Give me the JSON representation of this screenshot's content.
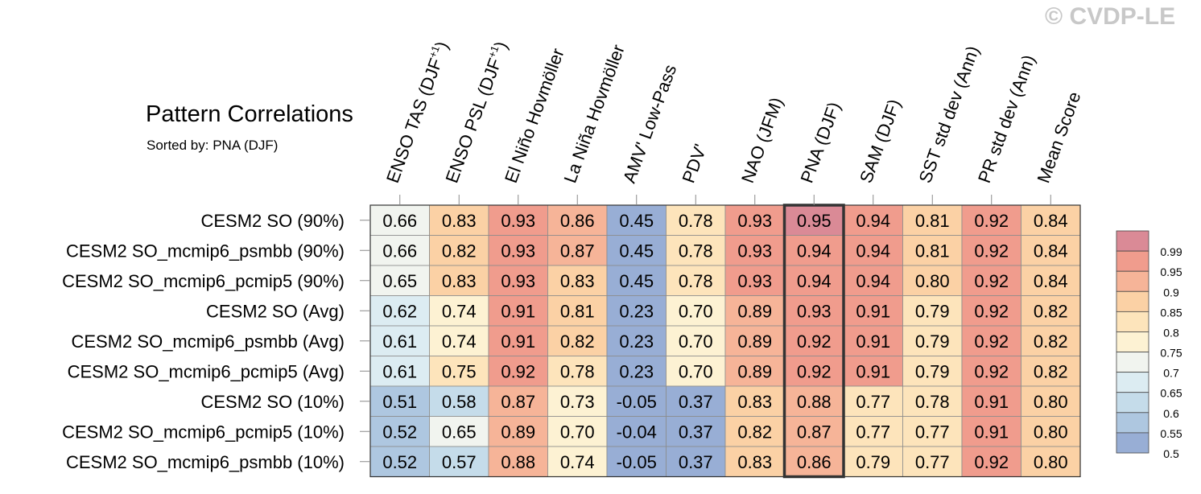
{
  "watermark": "© CVDP-LE",
  "title": "Pattern Correlations",
  "subtitle": "Sorted by: PNA (DJF)",
  "chart_data": {
    "type": "heatmap",
    "columns": [
      {
        "base": "ENSO TAS (DJF",
        "sup": "+1",
        "tail": ")"
      },
      {
        "base": "ENSO PSL (DJF",
        "sup": "+1",
        "tail": ")"
      },
      {
        "base": "El Niño Hovmöller"
      },
      {
        "base": "La Niña Hovmöller"
      },
      {
        "base": "AMV' Low-Pass"
      },
      {
        "base": "PDV'"
      },
      {
        "base": "NAO (JFM)"
      },
      {
        "base": "PNA (DJF)"
      },
      {
        "base": "SAM (DJF)"
      },
      {
        "base": "SST std dev (Ann)"
      },
      {
        "base": "PR std dev (Ann)"
      },
      {
        "base": "Mean Score"
      }
    ],
    "rows": [
      "CESM2 SO (90%)",
      "CESM2 SO_mcmip6_psmbb (90%)",
      "CESM2 SO_mcmip6_pcmip5 (90%)",
      "CESM2 SO (Avg)",
      "CESM2 SO_mcmip6_psmbb (Avg)",
      "CESM2 SO_mcmip6_pcmip5 (Avg)",
      "CESM2 SO (10%)",
      "CESM2 SO_mcmip6_pcmip5 (10%)",
      "CESM2 SO_mcmip6_psmbb (10%)"
    ],
    "values": [
      [
        "0.66",
        "0.83",
        "0.93",
        "0.86",
        "0.45",
        "0.78",
        "0.93",
        "0.95",
        "0.94",
        "0.81",
        "0.92",
        "0.84"
      ],
      [
        "0.66",
        "0.82",
        "0.93",
        "0.87",
        "0.45",
        "0.78",
        "0.93",
        "0.94",
        "0.94",
        "0.81",
        "0.92",
        "0.84"
      ],
      [
        "0.65",
        "0.83",
        "0.93",
        "0.83",
        "0.45",
        "0.78",
        "0.93",
        "0.94",
        "0.94",
        "0.80",
        "0.92",
        "0.84"
      ],
      [
        "0.62",
        "0.74",
        "0.91",
        "0.81",
        "0.23",
        "0.70",
        "0.89",
        "0.93",
        "0.91",
        "0.79",
        "0.92",
        "0.82"
      ],
      [
        "0.61",
        "0.74",
        "0.91",
        "0.82",
        "0.23",
        "0.70",
        "0.89",
        "0.92",
        "0.91",
        "0.79",
        "0.92",
        "0.82"
      ],
      [
        "0.61",
        "0.75",
        "0.92",
        "0.78",
        "0.23",
        "0.70",
        "0.89",
        "0.92",
        "0.91",
        "0.79",
        "0.92",
        "0.82"
      ],
      [
        "0.51",
        "0.58",
        "0.87",
        "0.73",
        "-0.05",
        "0.37",
        "0.83",
        "0.88",
        "0.77",
        "0.78",
        "0.91",
        "0.80"
      ],
      [
        "0.52",
        "0.65",
        "0.89",
        "0.70",
        "-0.04",
        "0.37",
        "0.82",
        "0.87",
        "0.77",
        "0.77",
        "0.91",
        "0.80"
      ],
      [
        "0.52",
        "0.57",
        "0.88",
        "0.74",
        "-0.05",
        "0.37",
        "0.83",
        "0.86",
        "0.79",
        "0.77",
        "0.92",
        "0.80"
      ]
    ],
    "highlight_column": "PNA (DJF)",
    "colorbar": {
      "levels": [
        "0.5",
        "0.55",
        "0.6",
        "0.65",
        "0.7",
        "0.75",
        "0.8",
        "0.85",
        "0.9",
        "0.95",
        "0.99"
      ],
      "colors": [
        "#98aed5",
        "#aec7e0",
        "#c5dcea",
        "#dcecf2",
        "#f1f4ef",
        "#fdf2d3",
        "#fde4bb",
        "#fbd1a5",
        "#f6b498",
        "#f09c8d",
        "#da8a96"
      ]
    }
  }
}
